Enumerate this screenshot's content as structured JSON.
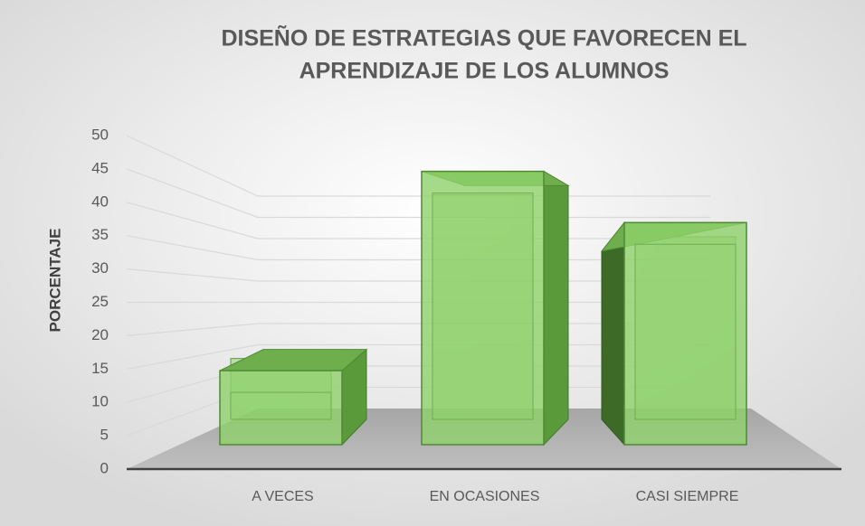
{
  "chart_data": {
    "type": "bar3d",
    "title": [
      "DISEÑO DE ESTRATEGIAS QUE FAVORECEN EL",
      "APRENDIZAJE DE LOS ALUMNOS"
    ],
    "y_label": "PORCENTAJE",
    "categories": [
      "A VECES",
      "EN OCASIONES",
      "CASI SIEMPRE"
    ],
    "values": [
      13,
      48,
      39
    ],
    "color": "#8fd16a",
    "ylim": [
      0,
      50
    ],
    "yticks": [
      0,
      5,
      10,
      15,
      20,
      25,
      30,
      35,
      40,
      45,
      50
    ],
    "grid": true
  }
}
